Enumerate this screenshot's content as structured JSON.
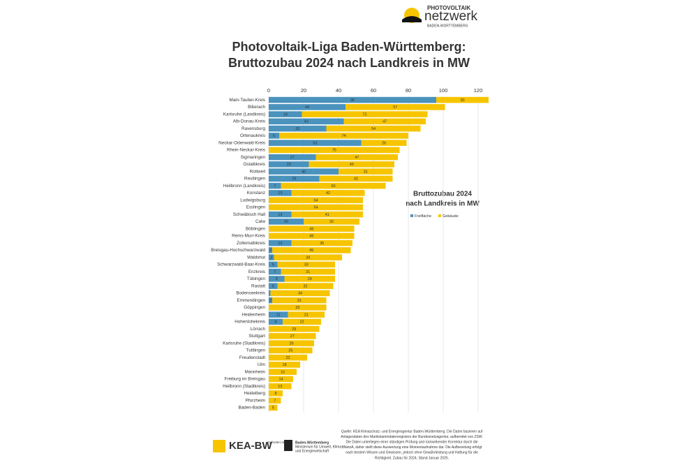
{
  "logo": {
    "line1": "PHOTOVOLTAIK",
    "line2": "netzwerk",
    "line3": "BADEN-WÜRTTEMBERG"
  },
  "chart_data": {
    "type": "stacked-barh",
    "title": "Photovoltaik-Liga Baden-Württemberg:",
    "subtitle": "Bruttozubau 2024 nach Landkreis in MW",
    "inner_title": [
      "Bruttozubau 2024",
      "nach Landkreis in MW"
    ],
    "categories": [
      "Main-Tauber-Kreis",
      "Biberach",
      "Karlsruhe (Landkreis)",
      "Alb-Donau-Kreis",
      "Ravensburg",
      "Ortenaukreis",
      "Neckar-Odenwald-Kreis",
      "Rhein-Neckar-Kreis",
      "Sigmaringen",
      "Ostalbkreis",
      "Rottweil",
      "Reutlingen",
      "Heilbronn (Landkreis)",
      "Konstanz",
      "Ludwigsburg",
      "Esslingen",
      "Schwäbisch Hall",
      "Calw",
      "Böblingen",
      "Rems-Murr-Kreis",
      "Zollernalbkreis",
      "Breisgau-Hochschwarzwald",
      "Waldshut",
      "Schwarzwald-Baar-Kreis",
      "Enzkreis",
      "Tübingen",
      "Rastatt",
      "Bodenseekreis",
      "Emmendingen",
      "Göppingen",
      "Heidenheim",
      "Hohenlohekreis",
      "Lörrach",
      "Stuttgart",
      "Karlsruhe (Stadtkreis)",
      "Tuttlingen",
      "Freudenstadt",
      "Ulm",
      "Mannheim",
      "Freiburg im Breisgau",
      "Heilbronn (Stadtkreis)",
      "Heidelberg",
      "Pforzheim",
      "Baden-Baden"
    ],
    "series": [
      {
        "name": "Freifläche",
        "color": "#4a93bd",
        "values": [
          96,
          44,
          19,
          43,
          33,
          6,
          53,
          0,
          27,
          23,
          40,
          29,
          7,
          13,
          0,
          0,
          13,
          20,
          0,
          0,
          13,
          2,
          3,
          5,
          7,
          9,
          5,
          1,
          2,
          0,
          11,
          8,
          0,
          0,
          0,
          0,
          0,
          0,
          0,
          0,
          0,
          0,
          0,
          0
        ]
      },
      {
        "name": "Gebäude",
        "color": "#f6c500",
        "values": [
          30,
          57,
          72,
          47,
          54,
          74,
          26,
          75,
          47,
          49,
          31,
          42,
          60,
          42,
          54,
          54,
          41,
          32,
          49,
          49,
          35,
          45,
          39,
          33,
          31,
          29,
          32,
          34,
          31,
          33,
          21,
          22,
          29,
          27,
          26,
          25,
          22,
          18,
          16,
          14,
          13,
          8,
          7,
          5
        ]
      }
    ],
    "xlim": [
      0,
      126
    ],
    "xticks": [
      0,
      20,
      40,
      60,
      80,
      100,
      120
    ],
    "grid": true,
    "legend": "right"
  },
  "source": [
    "Quelle: KEA Klimaschutz- und Energieagentur Baden-Württemberg. Die Daten basieren auf",
    "Anlagendaten des Marktstammdatenregisters der Bundesnetzagentur, aufbereitet von ZSW.",
    "Die Daten unterliegen einer ständigen Prüfung und rückwirkender Korrektur durch die",
    "BNetzA, daher stellt diese Auswertung eine Momentaufnahme dar. Die Aufbereitung erfolgt",
    "nach bestem Wissen und Gewissen, jedoch ohne Gewährleistung und Haftung für die",
    "Richtigkeit. Zubau für 2024, Stand Januar 2025."
  ],
  "footer": {
    "kea": "KEA-BW",
    "funded": "Gefördert durch",
    "ministry": [
      "Baden-Württemberg",
      "Ministerium für Umwelt, Klima",
      "und Energiewirtschaft"
    ]
  }
}
